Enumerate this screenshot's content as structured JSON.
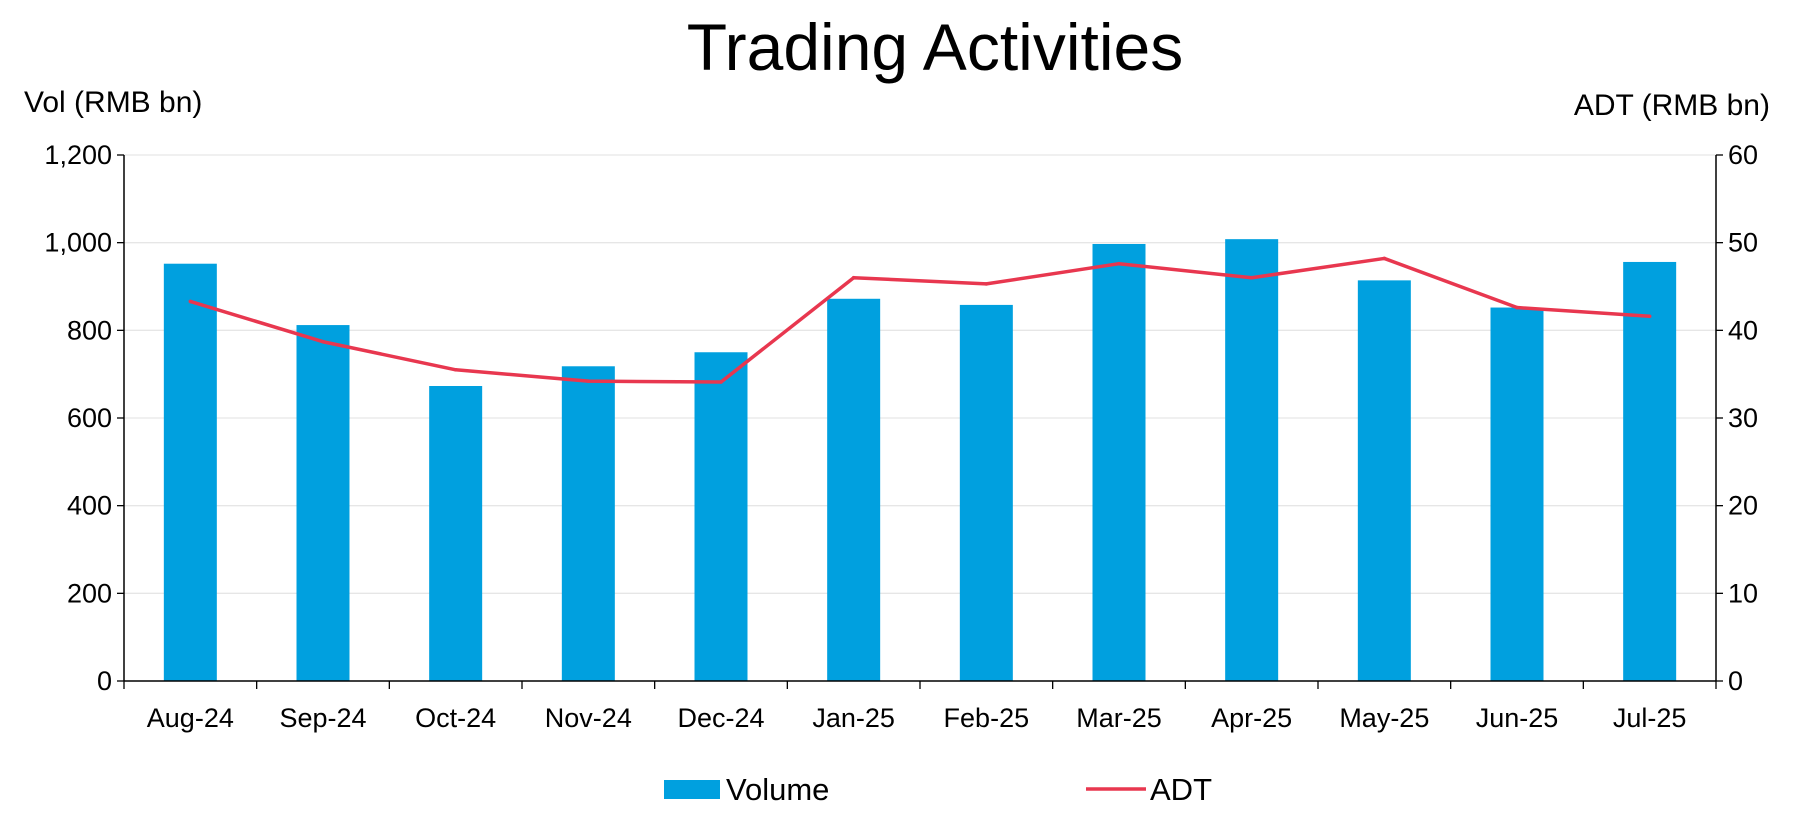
{
  "chart_data": {
    "type": "bar",
    "title": "Trading Activities",
    "ylabel": "Vol (RMB bn)",
    "y2label": "ADT (RMB bn)",
    "categories": [
      "Aug-24",
      "Sep-24",
      "Oct-24",
      "Nov-24",
      "Dec-24",
      "Jan-25",
      "Feb-25",
      "Mar-25",
      "Apr-25",
      "May-25",
      "Jun-25",
      "Jul-25"
    ],
    "ylim": [
      0,
      1200
    ],
    "y2lim": [
      0,
      60
    ],
    "yticks": [
      "0",
      "200",
      "400",
      "600",
      "800",
      "1,000",
      "1,200"
    ],
    "y2ticks": [
      "0",
      "10",
      "20",
      "30",
      "40",
      "50",
      "60"
    ],
    "grid": true,
    "legend_position": "bottom",
    "series": [
      {
        "name": "Volume",
        "type": "bar",
        "axis": "left",
        "color": "#00A0DF",
        "values": [
          952,
          812,
          673,
          718,
          750,
          872,
          858,
          997,
          1008,
          914,
          852,
          956
        ]
      },
      {
        "name": "ADT",
        "type": "line",
        "axis": "right",
        "color": "#E8374F",
        "values": [
          43.3,
          38.7,
          35.5,
          34.2,
          34.1,
          46.0,
          45.3,
          47.6,
          46.0,
          48.2,
          42.6,
          41.6
        ]
      }
    ]
  }
}
